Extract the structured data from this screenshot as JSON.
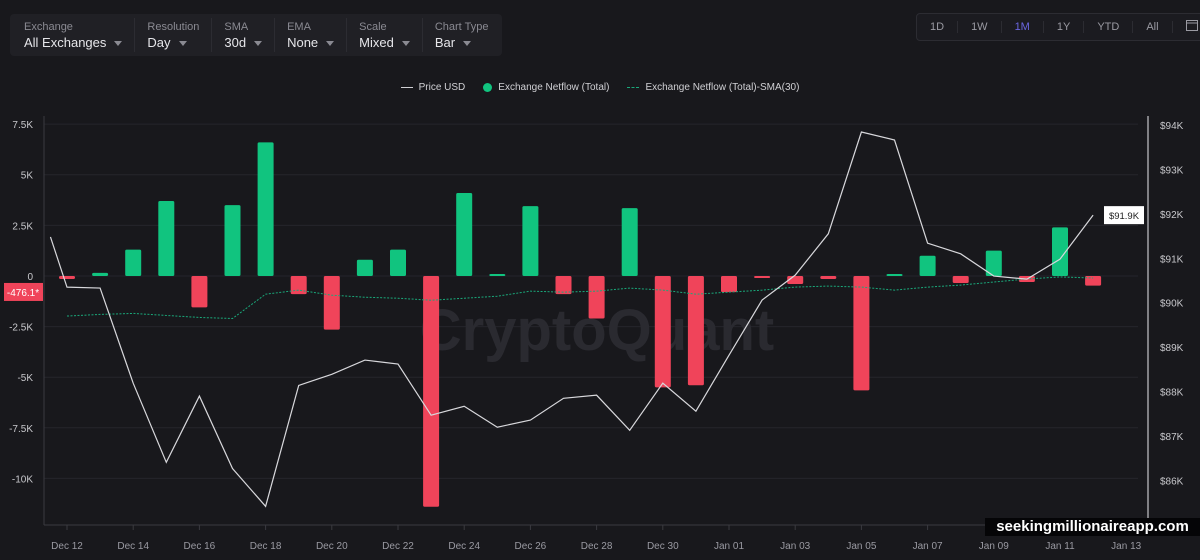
{
  "toolbar": [
    {
      "label": "Exchange",
      "value": "All Exchanges"
    },
    {
      "label": "Resolution",
      "value": "Day"
    },
    {
      "label": "SMA",
      "value": "30d"
    },
    {
      "label": "EMA",
      "value": "None"
    },
    {
      "label": "Scale",
      "value": "Mixed"
    },
    {
      "label": "Chart Type",
      "value": "Bar"
    }
  ],
  "ranges": [
    "1D",
    "1W",
    "1M",
    "1Y",
    "YTD",
    "All"
  ],
  "active_range": "1M",
  "calendar_icon": "calendar-icon",
  "watermark": "CryptoQuant",
  "brand_overlay": "seekingmillionaireapp.com",
  "colors": {
    "positive": "#11c47f",
    "negative": "#f0445a",
    "price": "#d8d8dc",
    "sma": "#1aa87a",
    "active": "#6a66e0"
  },
  "chart_data": {
    "type": "bar",
    "legend": [
      "Price USD",
      "Exchange Netflow (Total)",
      "Exchange Netflow (Total)-SMA(30)"
    ],
    "legend_position": "top",
    "grid": true,
    "left_axis": {
      "ticks": [
        "7.5K",
        "5K",
        "2.5K",
        "0",
        "-2.5K",
        "-5K",
        "-7.5K",
        "-10K"
      ],
      "tick_values": [
        7500,
        5000,
        2500,
        0,
        -2500,
        -5000,
        -7500,
        -10000
      ],
      "range": [
        -12300,
        7900
      ]
    },
    "right_axis": {
      "ticks": [
        "$94K",
        "$93K",
        "$92K",
        "$91K",
        "$90K",
        "$89K",
        "$88K",
        "$87K",
        "$86K"
      ],
      "tick_values": [
        94000,
        93000,
        92000,
        91000,
        90000,
        89000,
        88000,
        87000,
        86000
      ],
      "range": [
        85000,
        94200
      ],
      "current_label": "$91.9K"
    },
    "current_netflow_label": "-476.1*",
    "x_ticks": [
      "Dec 12",
      "Dec 14",
      "Dec 16",
      "Dec 18",
      "Dec 20",
      "Dec 22",
      "Dec 24",
      "Dec 26",
      "Dec 28",
      "Dec 30",
      "Jan 01",
      "Jan 03",
      "Jan 05",
      "Jan 07",
      "Jan 09",
      "Jan 11",
      "Jan 13"
    ],
    "dates": [
      "Dec 12",
      "Dec 13",
      "Dec 14",
      "Dec 15",
      "Dec 16",
      "Dec 17",
      "Dec 18",
      "Dec 19",
      "Dec 20",
      "Dec 21",
      "Dec 22",
      "Dec 23",
      "Dec 24",
      "Dec 25",
      "Dec 26",
      "Dec 27",
      "Dec 28",
      "Dec 29",
      "Dec 30",
      "Dec 31",
      "Jan 01",
      "Jan 02",
      "Jan 03",
      "Jan 04",
      "Jan 05",
      "Jan 06",
      "Jan 07",
      "Jan 08",
      "Jan 09",
      "Jan 10",
      "Jan 11",
      "Jan 12"
    ],
    "netflow": [
      -150,
      150,
      1300,
      3700,
      -1550,
      3500,
      6600,
      -900,
      -2650,
      800,
      1300,
      -11400,
      4100,
      50,
      3450,
      -900,
      -2100,
      3350,
      -5500,
      -5400,
      -800,
      -50,
      -400,
      -150,
      -5650,
      80,
      1000,
      -350,
      1250,
      -300,
      2400,
      -476.1
    ],
    "sma30": [
      -1980,
      -1900,
      -1850,
      -1950,
      -2050,
      -2100,
      -900,
      -700,
      -950,
      -1050,
      -1100,
      -1200,
      -1100,
      -1000,
      -750,
      -800,
      -750,
      -600,
      -700,
      -900,
      -800,
      -700,
      -550,
      -500,
      -550,
      -700,
      -550,
      -450,
      -300,
      -150,
      -50,
      -100
    ],
    "price_prev": 91480,
    "price": [
      90350,
      90330,
      88190,
      86410,
      87900,
      86270,
      85420,
      88140,
      88390,
      88710,
      88620,
      87470,
      87670,
      87200,
      87360,
      87850,
      87920,
      87130,
      88190,
      87560,
      88820,
      90060,
      90620,
      91550,
      93840,
      93660,
      91340,
      91100,
      90600,
      90530,
      90980,
      91970
    ]
  }
}
